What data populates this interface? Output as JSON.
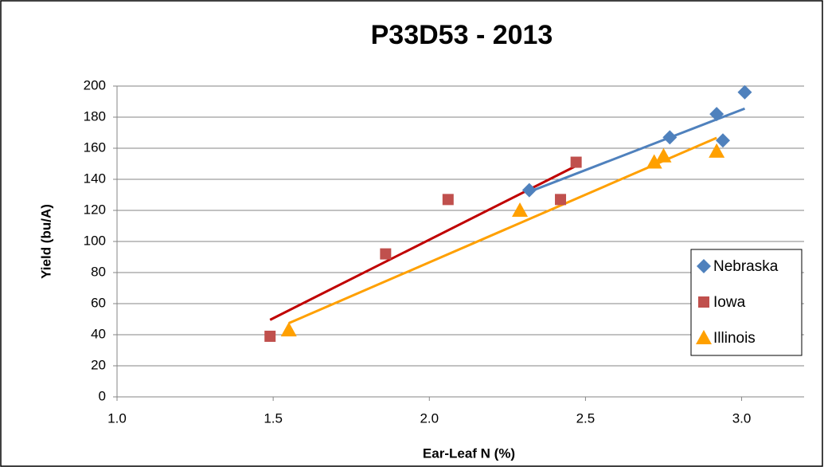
{
  "chart_data": {
    "type": "scatter",
    "title": "P33D53  -  2013",
    "x_label": "Ear-Leaf N (%)",
    "y_label": "Yield  (bu/A)",
    "xlim": [
      1.0,
      3.2
    ],
    "ylim": [
      0,
      200
    ],
    "xticks": [
      {
        "value": 1.0,
        "label": "1.0"
      },
      {
        "value": 1.5,
        "label": "1.5"
      },
      {
        "value": 2.0,
        "label": "2.0"
      },
      {
        "value": 2.5,
        "label": "2.5"
      },
      {
        "value": 3.0,
        "label": "3.0"
      }
    ],
    "yticks": [
      0,
      20,
      40,
      60,
      80,
      100,
      120,
      140,
      160,
      180,
      200
    ],
    "grid": true,
    "trendline": true,
    "legend": "right",
    "series": [
      {
        "name": "Nebraska",
        "color": "#4f81bd",
        "trend_color": "#4f81bd",
        "marker": "diamond",
        "x": [
          2.32,
          2.77,
          2.92,
          2.94,
          3.01
        ],
        "values": [
          133,
          167,
          182,
          165,
          196
        ]
      },
      {
        "name": "Iowa",
        "color": "#c0504d",
        "trend_color": "#c00000",
        "marker": "square",
        "x": [
          1.49,
          1.86,
          2.06,
          2.42,
          2.47
        ],
        "values": [
          39,
          92,
          127,
          127,
          151
        ]
      },
      {
        "name": "Illinois",
        "color": "#ffa000",
        "trend_color": "#ffa000",
        "marker": "triangle",
        "x": [
          1.55,
          2.29,
          2.72,
          2.75,
          2.92
        ],
        "values": [
          43,
          120,
          151,
          155,
          158
        ]
      }
    ]
  }
}
